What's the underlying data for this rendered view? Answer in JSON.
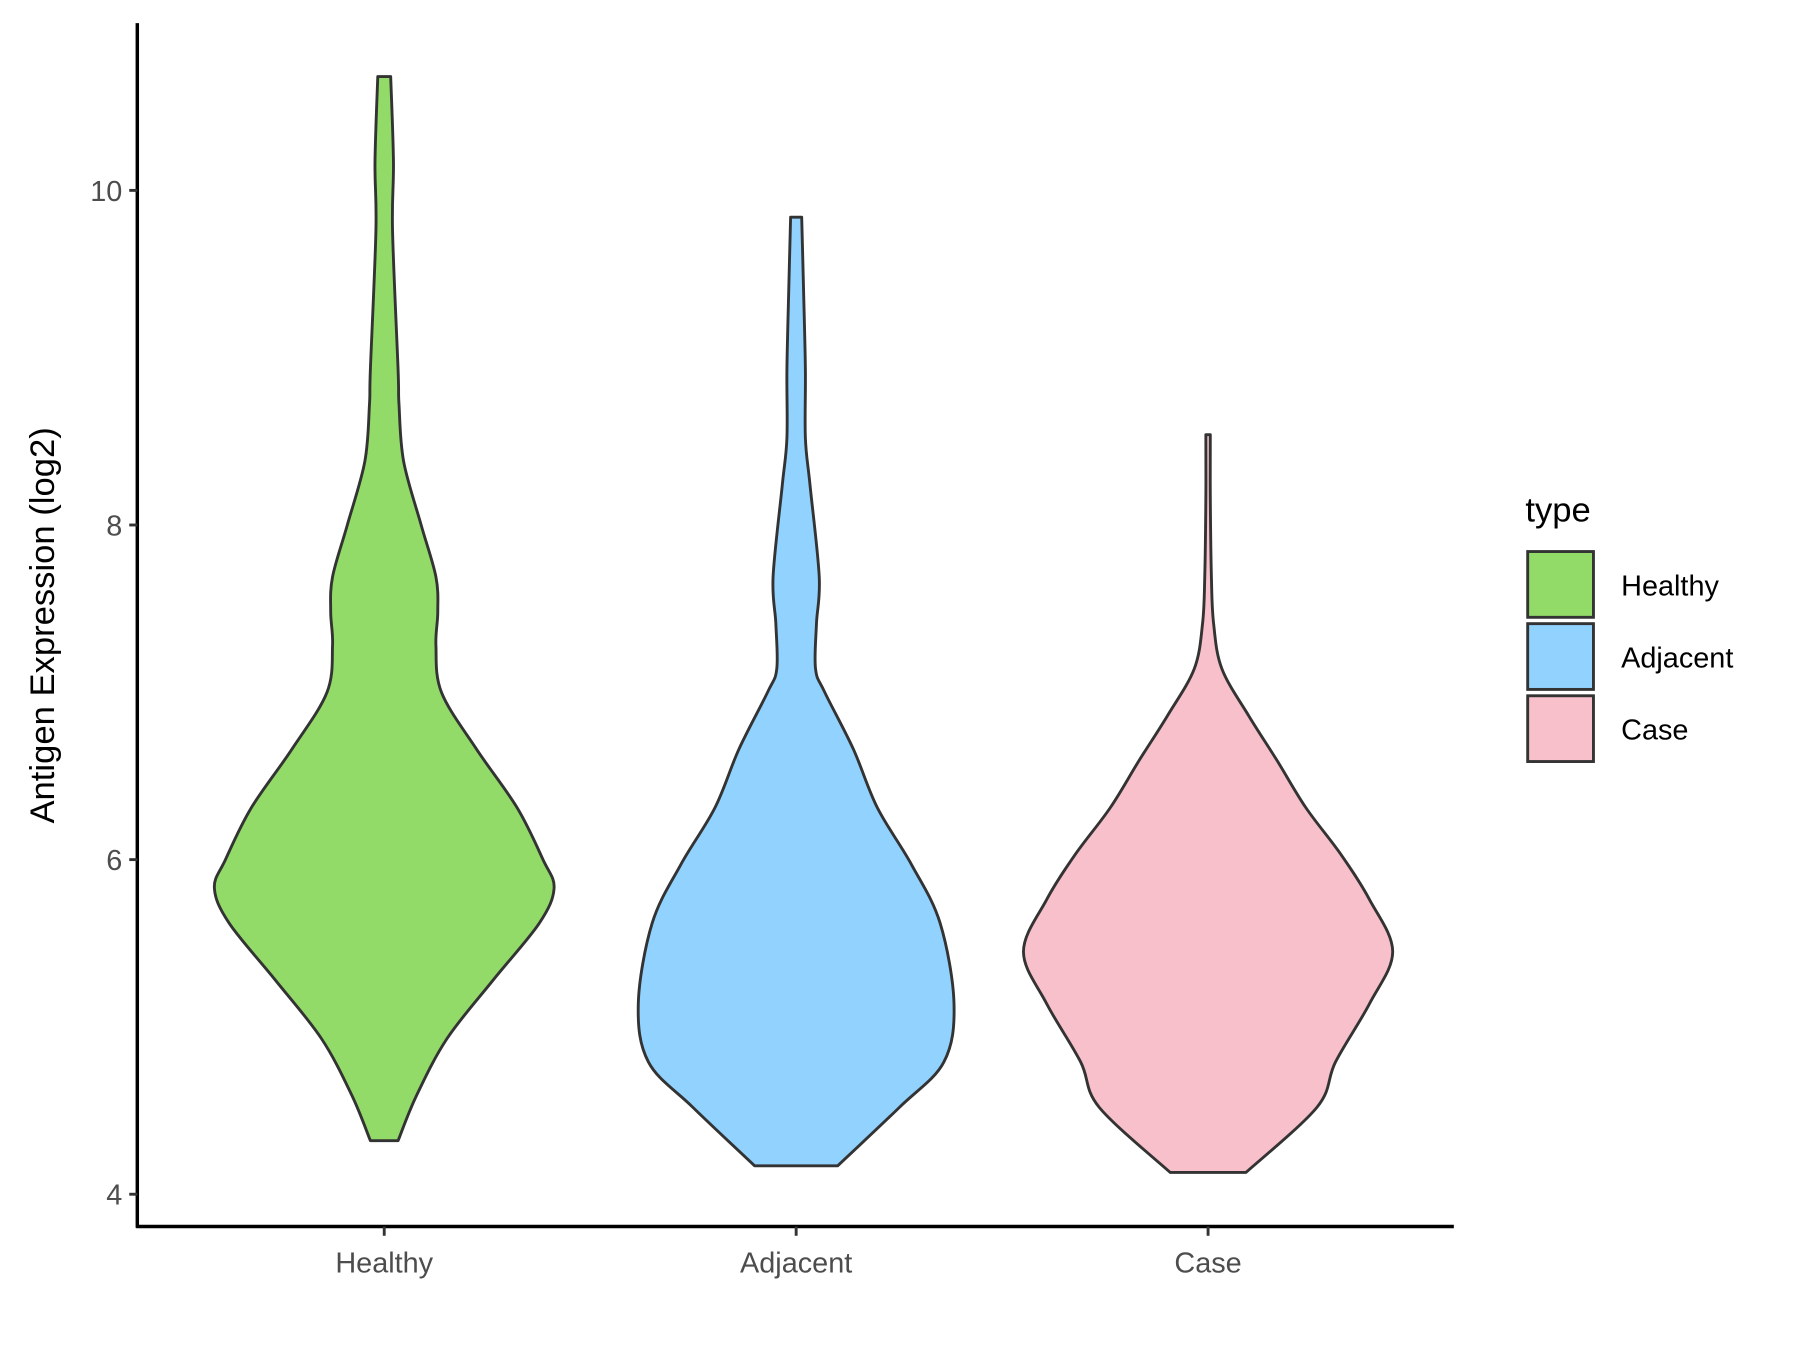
{
  "chart_data": {
    "type": "violin",
    "title": "",
    "xlabel": "",
    "ylabel": "Antigen Expression (log2)",
    "ylim": [
      3.9,
      10.85
    ],
    "yticks": [
      4,
      6,
      8,
      10
    ],
    "categories": [
      "Healthy",
      "Adjacent",
      "Case"
    ],
    "legend": {
      "title": "type",
      "position": "right",
      "entries": [
        "Healthy",
        "Adjacent",
        "Case"
      ]
    },
    "colors": {
      "Healthy": "#93DB69",
      "Adjacent": "#91D2FF",
      "Case": "#F7C0CB",
      "outline": "#333333"
    },
    "series": [
      {
        "name": "Healthy",
        "min": 4.32,
        "max": 10.68,
        "profile": [
          [
            4.32,
            0.075
          ],
          [
            4.59,
            0.175
          ],
          [
            4.93,
            0.34
          ],
          [
            5.28,
            0.59
          ],
          [
            5.62,
            0.84
          ],
          [
            5.83,
            0.92
          ],
          [
            6.0,
            0.86
          ],
          [
            6.31,
            0.72
          ],
          [
            6.66,
            0.5
          ],
          [
            7.0,
            0.31
          ],
          [
            7.28,
            0.28
          ],
          [
            7.48,
            0.29
          ],
          [
            7.69,
            0.28
          ],
          [
            8.0,
            0.2
          ],
          [
            8.38,
            0.105
          ],
          [
            8.72,
            0.08
          ],
          [
            8.93,
            0.075
          ],
          [
            9.76,
            0.045
          ],
          [
            10.17,
            0.05
          ],
          [
            10.68,
            0.035
          ]
        ]
      },
      {
        "name": "Adjacent",
        "min": 4.17,
        "max": 9.84,
        "profile": [
          [
            4.17,
            0.225
          ],
          [
            4.52,
            0.56
          ],
          [
            4.79,
            0.8
          ],
          [
            5.14,
            0.855
          ],
          [
            5.62,
            0.78
          ],
          [
            5.97,
            0.625
          ],
          [
            6.31,
            0.44
          ],
          [
            6.66,
            0.31
          ],
          [
            7.0,
            0.155
          ],
          [
            7.14,
            0.105
          ],
          [
            7.41,
            0.11
          ],
          [
            7.69,
            0.125
          ],
          [
            8.24,
            0.075
          ],
          [
            8.52,
            0.05
          ],
          [
            8.93,
            0.05
          ],
          [
            9.41,
            0.04
          ],
          [
            9.84,
            0.03
          ]
        ]
      },
      {
        "name": "Case",
        "min": 4.13,
        "max": 8.54,
        "profile": [
          [
            4.13,
            0.205
          ],
          [
            4.52,
            0.59
          ],
          [
            4.79,
            0.69
          ],
          [
            5.14,
            0.875
          ],
          [
            5.45,
            1.0
          ],
          [
            5.76,
            0.875
          ],
          [
            6.03,
            0.72
          ],
          [
            6.31,
            0.53
          ],
          [
            6.59,
            0.375
          ],
          [
            6.86,
            0.22
          ],
          [
            7.14,
            0.075
          ],
          [
            7.41,
            0.03
          ],
          [
            7.69,
            0.018
          ],
          [
            8.17,
            0.012
          ],
          [
            8.54,
            0.012
          ]
        ]
      }
    ]
  }
}
